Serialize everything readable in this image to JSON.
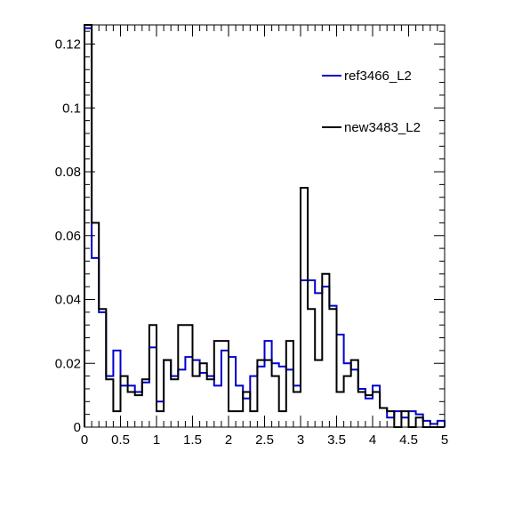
{
  "chart_data": {
    "type": "histogram",
    "title": "",
    "xlabel": "",
    "ylabel": "",
    "xlim": [
      0,
      5
    ],
    "ylim": [
      0,
      0.126
    ],
    "grid": false,
    "legend_position": "top-right",
    "x_ticks": [
      "0",
      "0.5",
      "1",
      "1.5",
      "2",
      "2.5",
      "3",
      "3.5",
      "4",
      "4.5",
      "5"
    ],
    "y_ticks": [
      "0",
      "0.02",
      "0.04",
      "0.06",
      "0.08",
      "0.1",
      "0.12"
    ],
    "bin_edges": [
      0,
      0.1,
      0.2,
      0.3,
      0.4,
      0.5,
      0.6,
      0.7,
      0.8,
      0.9,
      1.0,
      1.1,
      1.2,
      1.3,
      1.4,
      1.5,
      1.6,
      1.7,
      1.8,
      1.9,
      2.0,
      2.1,
      2.2,
      2.3,
      2.4,
      2.5,
      2.6,
      2.7,
      2.8,
      2.9,
      3.0,
      3.1,
      3.2,
      3.3,
      3.4,
      3.5,
      3.6,
      3.7,
      3.8,
      3.9,
      4.0,
      4.1,
      4.2,
      4.3,
      4.4,
      4.5,
      4.6,
      4.7,
      4.8,
      4.9,
      5.0
    ],
    "series": [
      {
        "name": "ref3466_L2",
        "color": "#0000cc",
        "values": [
          0.125,
          0.053,
          0.036,
          0.016,
          0.024,
          0.013,
          0.013,
          0.011,
          0.014,
          0.025,
          0.008,
          0.021,
          0.016,
          0.018,
          0.022,
          0.021,
          0.017,
          0.016,
          0.013,
          0.024,
          0.022,
          0.013,
          0.009,
          0.016,
          0.019,
          0.027,
          0.02,
          0.019,
          0.018,
          0.013,
          0.046,
          0.046,
          0.042,
          0.044,
          0.038,
          0.029,
          0.02,
          0.018,
          0.012,
          0.009,
          0.013,
          0.006,
          0.003,
          0.005,
          0.003,
          0.005,
          0.004,
          0.002,
          0.001,
          0.002
        ]
      },
      {
        "name": "new3483_L2",
        "color": "#000000",
        "values": [
          0.126,
          0.064,
          0.037,
          0.015,
          0.005,
          0.016,
          0.011,
          0.01,
          0.015,
          0.032,
          0.005,
          0.021,
          0.015,
          0.032,
          0.032,
          0.016,
          0.02,
          0.015,
          0.027,
          0.027,
          0.005,
          0.005,
          0.011,
          0.005,
          0.021,
          0.021,
          0.016,
          0.005,
          0.027,
          0.011,
          0.075,
          0.037,
          0.021,
          0.048,
          0.037,
          0.011,
          0.016,
          0.021,
          0.011,
          0.01,
          0.011,
          0.006,
          0.005,
          0.0,
          0.005,
          0.0,
          0.003,
          0.0,
          0.0,
          0.0
        ]
      }
    ]
  }
}
